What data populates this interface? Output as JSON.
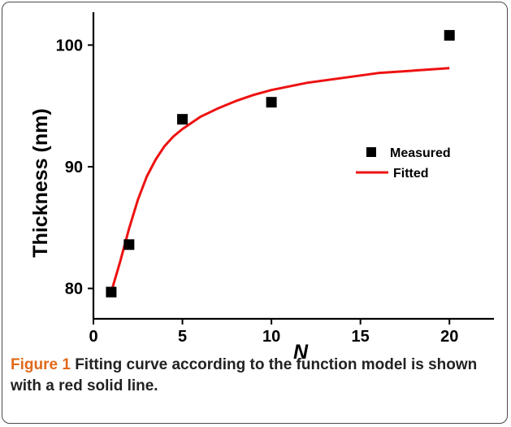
{
  "colors": {
    "fit_line": "#ee1111",
    "marker": "#000000",
    "caption_label": "#e06a1a",
    "caption_text": "#222222"
  },
  "caption": {
    "label": "Figure 1",
    "text": "Fitting curve according to the function model is shown with a red solid line."
  },
  "chart_data": {
    "type": "scatter",
    "title": "",
    "xlabel": "N",
    "ylabel": "Thickness (nm)",
    "xlim": [
      0,
      22.5
    ],
    "ylim": [
      77.5,
      102.7
    ],
    "x_ticks": [
      0,
      5,
      10,
      15,
      20
    ],
    "x_tick_labels": [
      "0",
      "5",
      "10",
      "15",
      "20"
    ],
    "y_ticks": [
      80,
      90,
      100
    ],
    "y_tick_labels": [
      "80",
      "90",
      "100"
    ],
    "grid": false,
    "legend_position": "right",
    "series": [
      {
        "name": "Measured",
        "kind": "markers",
        "marker": "square",
        "x": [
          1,
          2,
          5,
          10,
          20
        ],
        "y": [
          79.7,
          83.6,
          93.9,
          95.3,
          100.8
        ]
      },
      {
        "name": "Fitted",
        "kind": "line",
        "x": [
          1,
          1.5,
          2,
          2.5,
          3,
          3.5,
          4,
          4.5,
          5,
          6,
          7,
          8,
          9,
          10,
          12,
          14,
          16,
          18,
          20
        ],
        "y": [
          79.7,
          82.2,
          84.9,
          87.3,
          89.2,
          90.6,
          91.7,
          92.5,
          93.1,
          94.1,
          94.8,
          95.4,
          95.9,
          96.3,
          96.9,
          97.3,
          97.7,
          97.9,
          98.1
        ]
      }
    ]
  }
}
